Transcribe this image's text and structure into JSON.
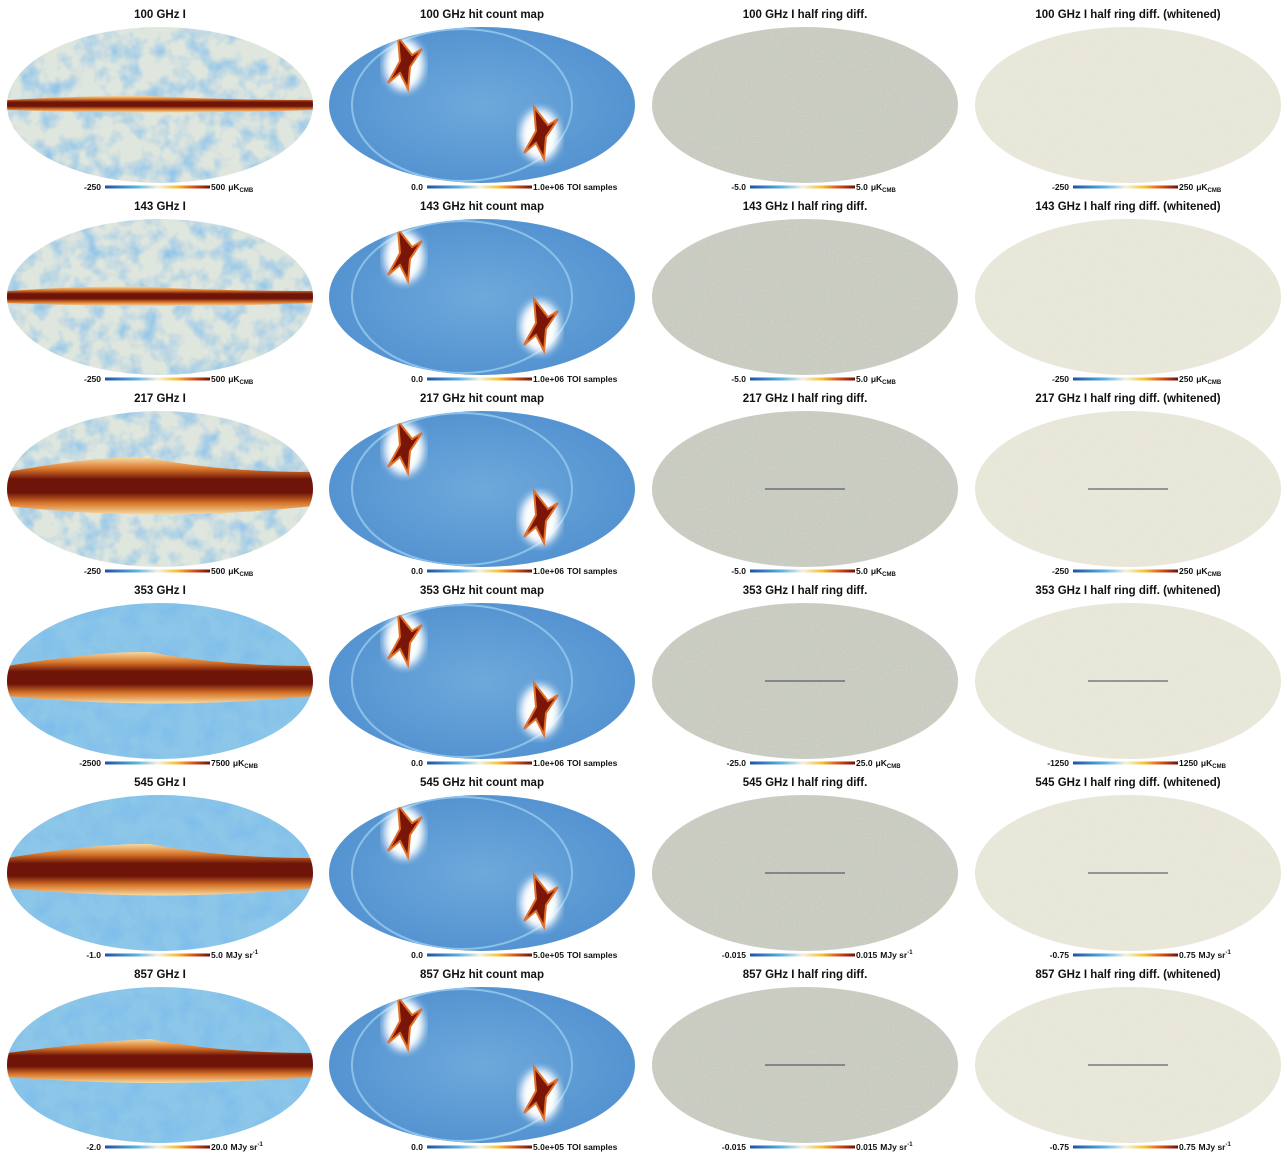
{
  "panels": [
    [
      {
        "title": "100 GHz I",
        "min": "-250",
        "max": "500",
        "unit": "μK",
        "unit_sub": "CMB"
      },
      {
        "title": "100 GHz hit count map",
        "min": "0.0",
        "max": "1.0e+06",
        "unit": "TOI samples"
      },
      {
        "title": "100 GHz I half ring diff.",
        "min": "-5.0",
        "max": "5.0",
        "unit": "μK",
        "unit_sub": "CMB"
      },
      {
        "title": "100 GHz I half ring diff. (whitened)",
        "min": "-250",
        "max": "250",
        "unit": "μK",
        "unit_sub": "CMB"
      }
    ],
    [
      {
        "title": "143 GHz I",
        "min": "-250",
        "max": "500",
        "unit": "μK",
        "unit_sub": "CMB"
      },
      {
        "title": "143 GHz hit count map",
        "min": "0.0",
        "max": "1.0e+06",
        "unit": "TOI samples"
      },
      {
        "title": "143 GHz I half ring diff.",
        "min": "-5.0",
        "max": "5.0",
        "unit": "μK",
        "unit_sub": "CMB"
      },
      {
        "title": "143 GHz I half ring diff. (whitened)",
        "min": "-250",
        "max": "250",
        "unit": "μK",
        "unit_sub": "CMB"
      }
    ],
    [
      {
        "title": "217 GHz I",
        "min": "-250",
        "max": "500",
        "unit": "μK",
        "unit_sub": "CMB"
      },
      {
        "title": "217 GHz hit count map",
        "min": "0.0",
        "max": "1.0e+06",
        "unit": "TOI samples"
      },
      {
        "title": "217 GHz I half ring diff.",
        "min": "-5.0",
        "max": "5.0",
        "unit": "μK",
        "unit_sub": "CMB"
      },
      {
        "title": "217 GHz I half ring diff. (whitened)",
        "min": "-250",
        "max": "250",
        "unit": "μK",
        "unit_sub": "CMB"
      }
    ],
    [
      {
        "title": "353 GHz I",
        "min": "-2500",
        "max": "7500",
        "unit": "μK",
        "unit_sub": "CMB"
      },
      {
        "title": "353 GHz hit count map",
        "min": "0.0",
        "max": "1.0e+06",
        "unit": "TOI samples"
      },
      {
        "title": "353 GHz I half ring diff.",
        "min": "-25.0",
        "max": "25.0",
        "unit": "μK",
        "unit_sub": "CMB"
      },
      {
        "title": "353 GHz I half ring diff. (whitened)",
        "min": "-1250",
        "max": "1250",
        "unit": "μK",
        "unit_sub": "CMB"
      }
    ],
    [
      {
        "title": "545 GHz I",
        "min": "-1.0",
        "max": "5.0",
        "unit": "MJy sr",
        "unit_sup": "-1"
      },
      {
        "title": "545 GHz hit count map",
        "min": "0.0",
        "max": "5.0e+05",
        "unit": "TOI samples"
      },
      {
        "title": "545 GHz I half ring diff.",
        "min": "-0.015",
        "max": "0.015",
        "unit": "MJy sr",
        "unit_sup": "-1"
      },
      {
        "title": "545 GHz I half ring diff. (whitened)",
        "min": "-0.75",
        "max": "0.75",
        "unit": "MJy sr",
        "unit_sup": "-1"
      }
    ],
    [
      {
        "title": "857 GHz I",
        "min": "-2.0",
        "max": "20.0",
        "unit": "MJy sr",
        "unit_sup": "-1"
      },
      {
        "title": "857 GHz hit count map",
        "min": "0.0",
        "max": "5.0e+05",
        "unit": "TOI samples"
      },
      {
        "title": "857 GHz I half ring diff.",
        "min": "-0.015",
        "max": "0.015",
        "unit": "MJy sr",
        "unit_sup": "-1"
      },
      {
        "title": "857 GHz I half ring diff. (whitened)",
        "min": "-0.75",
        "max": "0.75",
        "unit": "MJy sr",
        "unit_sup": "-1"
      }
    ]
  ]
}
